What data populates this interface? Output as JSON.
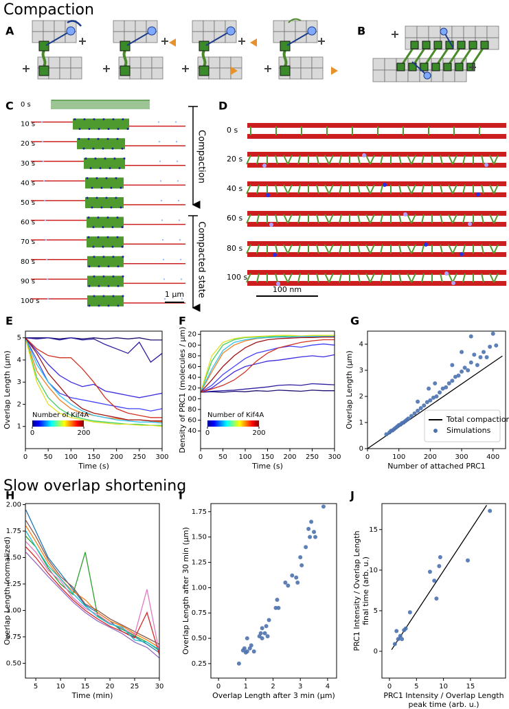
{
  "headings": [
    "Compaction",
    "Slow overlap shortening"
  ],
  "panel_labels": [
    "A",
    "B",
    "C",
    "D",
    "E",
    "F",
    "G",
    "H",
    "I",
    "J"
  ],
  "panel_c": {
    "times": [
      "0 s",
      "10 s",
      "20 s",
      "30 s",
      "40 s",
      "50 s",
      "60 s",
      "70 s",
      "80 s",
      "90 s",
      "100 s"
    ],
    "phases": [
      "Compaction",
      "Compacted state"
    ],
    "scale_bar": "1 µm"
  },
  "panel_d": {
    "times": [
      "0 s",
      "20 s",
      "40 s",
      "60 s",
      "80 s",
      "100 s"
    ],
    "scale_bar": "100 nm"
  },
  "chart_data": [
    {
      "type": "line",
      "xlabel": "Time (s)",
      "ylabel": "Overlap Length (µm)",
      "x": [
        0,
        25,
        50,
        75,
        100,
        125,
        150,
        175,
        200,
        225,
        250,
        275,
        300
      ],
      "xlim": [
        0,
        300
      ],
      "xticks": [
        0,
        50,
        100,
        150,
        200,
        250,
        300
      ],
      "ylim": [
        0,
        5.3
      ],
      "yticks": [
        1,
        2,
        3,
        4,
        5
      ],
      "colorbar": {
        "label": "Number of Kif4A",
        "ticks": [
          0,
          200
        ]
      },
      "series": [
        {
          "color": "#1a0f6e",
          "values": [
            5,
            5,
            5,
            4.95,
            5,
            4.95,
            5,
            4.95,
            5,
            4.95,
            5,
            4.9,
            4.9
          ]
        },
        {
          "color": "#2a1aa0",
          "values": [
            5,
            4.95,
            5,
            4.9,
            5,
            4.9,
            4.95,
            4.7,
            4.5,
            4.3,
            4.8,
            3.9,
            4.3
          ]
        },
        {
          "color": "#3a2ae0",
          "values": [
            5,
            4.4,
            3.8,
            3.3,
            3,
            2.8,
            2.9,
            2.6,
            2.5,
            2.4,
            2.3,
            2.4,
            2.5
          ]
        },
        {
          "color": "#4040ff",
          "values": [
            5,
            4,
            3,
            2.5,
            2.3,
            2.2,
            2.1,
            2,
            1.9,
            1.8,
            1.8,
            1.7,
            1.8
          ]
        },
        {
          "color": "#d03020",
          "values": [
            5,
            4.5,
            4.2,
            4.1,
            4.1,
            3.6,
            3,
            2.3,
            1.8,
            1.6,
            1.5,
            1.4,
            1.4
          ]
        },
        {
          "color": "#f08020",
          "values": [
            5,
            3.5,
            2.8,
            2.2,
            1.8,
            1.6,
            1.5,
            1.4,
            1.35,
            1.3,
            1.3,
            1.25,
            1.2
          ]
        },
        {
          "color": "#40d060",
          "values": [
            5,
            3.2,
            2.3,
            1.8,
            1.5,
            1.35,
            1.25,
            1.2,
            1.15,
            1.1,
            1.1,
            1.05,
            1.05
          ]
        },
        {
          "color": "#e0e020",
          "values": [
            5,
            3,
            2,
            1.6,
            1.4,
            1.3,
            1.2,
            1.15,
            1.1,
            1.1,
            1.05,
            1.05,
            1
          ]
        },
        {
          "color": "#30c0f0",
          "values": [
            5,
            3.8,
            3,
            2.4,
            2,
            1.7,
            1.5,
            1.4,
            1.3,
            1.25,
            1.2,
            1.2,
            1.15
          ]
        },
        {
          "color": "#a01010",
          "values": [
            5,
            4.3,
            3.4,
            2.8,
            2.2,
            1.8,
            1.6,
            1.5,
            1.4,
            1.3,
            1.3,
            1.25,
            1.25
          ]
        }
      ]
    },
    {
      "type": "line",
      "xlabel": "Time (s)",
      "ylabel": "Density of PRC1 (molecules / µm)",
      "x": [
        0,
        25,
        50,
        75,
        100,
        125,
        150,
        175,
        200,
        225,
        250,
        275,
        300
      ],
      "xlim": [
        0,
        300
      ],
      "xticks": [
        0,
        50,
        100,
        150,
        200,
        250,
        300
      ],
      "ylim": [
        7,
        226
      ],
      "yticks": [
        40,
        60,
        80,
        {
          "value": 100,
          "label": "00"
        },
        {
          "value": 120,
          "label": "20"
        },
        {
          "value": 140,
          "label": "40"
        },
        {
          "value": 160,
          "label": "60"
        },
        {
          "value": 180,
          "label": "80"
        },
        {
          "value": 200,
          "label": "00"
        },
        {
          "value": 220,
          "label": "20"
        }
      ],
      "colorbar": {
        "label": "Number of Kif4A",
        "ticks": [
          0,
          200
        ]
      },
      "series": [
        {
          "color": "#1a0f6e",
          "values": [
            112,
            113,
            112,
            114,
            113,
            115,
            114,
            116,
            115,
            114,
            116,
            115,
            115
          ]
        },
        {
          "color": "#2a1aa0",
          "values": [
            112,
            114,
            115,
            116,
            118,
            120,
            122,
            125,
            126,
            125,
            128,
            127,
            126
          ]
        },
        {
          "color": "#3a2ae0",
          "values": [
            112,
            120,
            135,
            150,
            160,
            165,
            170,
            172,
            175,
            178,
            180,
            178,
            182
          ]
        },
        {
          "color": "#4040ff",
          "values": [
            112,
            125,
            145,
            160,
            175,
            185,
            190,
            195,
            198,
            196,
            200,
            202,
            200
          ]
        },
        {
          "color": "#d03020",
          "values": [
            112,
            118,
            125,
            135,
            150,
            170,
            185,
            195,
            200,
            205,
            208,
            210,
            210
          ]
        },
        {
          "color": "#f08020",
          "values": [
            112,
            150,
            185,
            200,
            208,
            212,
            214,
            215,
            215,
            216,
            215,
            216,
            216
          ]
        },
        {
          "color": "#40d060",
          "values": [
            112,
            170,
            200,
            210,
            214,
            215,
            216,
            216,
            217,
            216,
            217,
            217,
            217
          ]
        },
        {
          "color": "#e0e020",
          "values": [
            112,
            180,
            205,
            212,
            215,
            216,
            217,
            218,
            218,
            217,
            218,
            218,
            218
          ]
        },
        {
          "color": "#30c0f0",
          "values": [
            112,
            155,
            190,
            205,
            210,
            213,
            214,
            215,
            215,
            216,
            216,
            216,
            216
          ]
        },
        {
          "color": "#a01010",
          "values": [
            112,
            135,
            160,
            180,
            195,
            205,
            210,
            212,
            213,
            214,
            214,
            215,
            215
          ]
        }
      ]
    },
    {
      "type": "scatter",
      "xlabel": "Number of attached PRC1",
      "ylabel": "Overlap Length (µm)",
      "xlim": [
        0,
        440
      ],
      "xticks": [
        0,
        100,
        200,
        300,
        400
      ],
      "ylim": [
        0,
        4.5
      ],
      "yticks": [
        0,
        1,
        2,
        3,
        4
      ],
      "legend": "lower right",
      "series": [
        {
          "name": "Total compaction",
          "type": "line",
          "color": "#000000",
          "x": [
            0,
            430
          ],
          "values": [
            0,
            3.55
          ]
        },
        {
          "name": "Simulations",
          "color": "#4c72b0",
          "x": [
            60,
            70,
            75,
            80,
            85,
            90,
            95,
            100,
            105,
            110,
            115,
            120,
            125,
            130,
            140,
            150,
            160,
            170,
            180,
            190,
            200,
            210,
            220,
            230,
            240,
            250,
            260,
            270,
            280,
            290,
            300,
            310,
            320,
            330,
            340,
            350,
            360,
            370,
            380,
            390,
            400,
            410,
            300,
            330,
            270,
            215,
            195,
            160
          ],
          "values": [
            0.55,
            0.62,
            0.68,
            0.7,
            0.75,
            0.8,
            0.85,
            0.9,
            0.92,
            0.98,
            1,
            1.05,
            1.1,
            1.15,
            1.25,
            1.35,
            1.45,
            1.55,
            1.65,
            1.78,
            1.85,
            1.95,
            2,
            2.15,
            2.3,
            2.35,
            2.5,
            2.6,
            2.75,
            2.8,
            2.95,
            3.1,
            3,
            3.3,
            3.6,
            3.2,
            3.5,
            3.7,
            3.5,
            3.9,
            4.4,
            3.95,
            3.7,
            4.3,
            3.2,
            2.5,
            2.3,
            1.8
          ]
        }
      ]
    },
    {
      "type": "line",
      "xlabel": "Time (min)",
      "ylabel": "Overlap Length (normalized)",
      "x": [
        3,
        5,
        7.5,
        10,
        12.5,
        15,
        17.5,
        20,
        22.5,
        25,
        27.5,
        30
      ],
      "xlim": [
        2.9,
        30
      ],
      "xticks": [
        5,
        10,
        15,
        20,
        25,
        30
      ],
      "ylim": [
        0.36,
        2.01
      ],
      "yticks": [
        {
          "value": 0.5,
          "label": "0.50"
        },
        0.75,
        {
          "value": 1,
          "label": "1.00"
        },
        1.25,
        {
          "value": 1.5,
          "label": "1.50"
        },
        1.75,
        {
          "value": 2,
          "label": "2.00"
        }
      ],
      "series": [
        {
          "color": "#1f77b4",
          "values": [
            1.95,
            1.75,
            1.5,
            1.35,
            1.2,
            1.05,
            0.98,
            0.9,
            0.8,
            0.75,
            0.68,
            0.6
          ]
        },
        {
          "color": "#ff7f0e",
          "values": [
            1.8,
            1.65,
            1.45,
            1.3,
            1.18,
            1.1,
            0.98,
            0.9,
            0.85,
            0.78,
            0.72,
            0.65
          ]
        },
        {
          "color": "#2ca02c",
          "values": [
            1.7,
            1.6,
            1.4,
            1.25,
            1.15,
            1.55,
            0.95,
            0.88,
            0.82,
            0.76,
            0.7,
            0.62
          ]
        },
        {
          "color": "#d62728",
          "values": [
            1.6,
            1.5,
            1.35,
            1.22,
            1.1,
            1,
            0.92,
            0.85,
            0.8,
            0.74,
            0.98,
            0.58
          ]
        },
        {
          "color": "#9467bd",
          "values": [
            1.55,
            1.45,
            1.32,
            1.2,
            1.08,
            0.98,
            0.9,
            0.84,
            0.78,
            0.7,
            0.65,
            0.55
          ]
        },
        {
          "color": "#8c564b",
          "values": [
            1.85,
            1.7,
            1.48,
            1.32,
            1.22,
            1.06,
            1,
            0.92,
            0.86,
            0.8,
            0.74,
            0.68
          ]
        },
        {
          "color": "#e377c2",
          "values": [
            1.65,
            1.55,
            1.38,
            1.28,
            1.12,
            1.02,
            0.96,
            0.88,
            0.83,
            0.77,
            1.2,
            0.6
          ]
        },
        {
          "color": "#17becf",
          "values": [
            1.75,
            1.6,
            1.42,
            1.3,
            1.16,
            1.04,
            0.94,
            0.87,
            0.84,
            0.72,
            0.7,
            0.63
          ]
        }
      ]
    },
    {
      "type": "scatter",
      "xlabel": "Overlap Length after 3 min (µm)",
      "ylabel": "Overlap Length after 30 min (µm)",
      "xlim": [
        -0.28,
        4.33
      ],
      "xticks": [
        0,
        1,
        2,
        3,
        4
      ],
      "ylim": [
        0.107,
        1.83
      ],
      "yticks": [
        0.25,
        {
          "value": 0.5,
          "label": "0.50"
        },
        0.75,
        {
          "value": 1,
          "label": "1.00"
        },
        1.25,
        {
          "value": 1.5,
          "label": "1.50"
        },
        1.75
      ],
      "series": [
        {
          "color": "#4c72b0",
          "x": [
            0.75,
            0.9,
            0.95,
            1,
            1.05,
            1.05,
            1.15,
            1.2,
            1.3,
            1.5,
            1.55,
            1.6,
            1.6,
            1.7,
            1.75,
            1.8,
            1.85,
            2.1,
            2.15,
            2.2,
            2.45,
            2.55,
            2.7,
            2.85,
            2.9,
            3,
            3.05,
            3.2,
            3.3,
            3.35,
            3.4,
            3.5,
            3.55,
            3.85
          ],
          "values": [
            0.25,
            0.38,
            0.4,
            0.36,
            0.5,
            0.37,
            0.4,
            0.43,
            0.37,
            0.52,
            0.55,
            0.5,
            0.6,
            0.55,
            0.62,
            0.52,
            0.68,
            0.8,
            0.88,
            0.8,
            1.05,
            1.02,
            1.12,
            1.1,
            1.05,
            1.3,
            1.22,
            1.4,
            1.58,
            1.5,
            1.65,
            1.55,
            1.5,
            1.8
          ]
        }
      ]
    },
    {
      "type": "scatter",
      "xlabel": [
        "PRC1 Intensity / Overlap Length",
        "peak time (arb. u.)"
      ],
      "ylabel": [
        "PRC1 Intensity / Overlap Length",
        "final time (arb. u.)"
      ],
      "xlim": [
        -1.4,
        21.5
      ],
      "xticks": [
        0,
        5,
        10,
        15
      ],
      "ylim": [
        -3.3,
        18.2
      ],
      "yticks": [
        0,
        5,
        10,
        15
      ],
      "series": [
        {
          "type": "line",
          "color": "#000000",
          "x": [
            0.4,
            18
          ],
          "values": [
            0.2,
            18
          ]
        },
        {
          "color": "#4c72b0",
          "x": [
            1,
            1.3,
            1.6,
            2,
            2.3,
            2.7,
            3,
            3.8,
            7.5,
            8.3,
            8.7,
            9.2,
            9.4,
            14.5,
            18.6
          ],
          "values": [
            0.9,
            2.5,
            1.5,
            1.9,
            1.5,
            2.6,
            2.8,
            4.8,
            9.8,
            8.7,
            6.5,
            10.5,
            11.6,
            11.2,
            17.3
          ]
        }
      ]
    }
  ]
}
